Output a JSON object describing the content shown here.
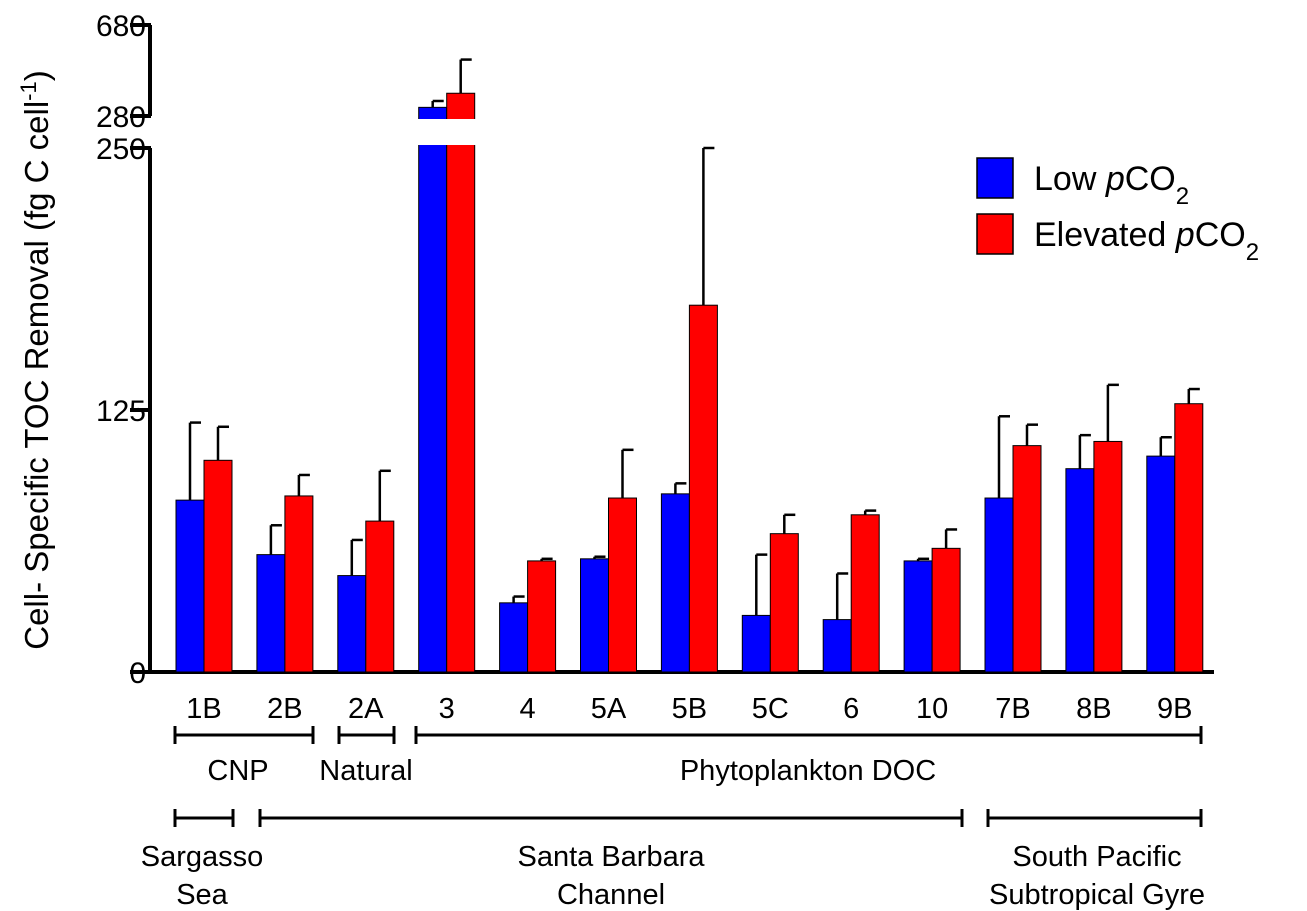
{
  "chart_data": {
    "type": "bar",
    "ylabel": "Cell- Specific TOC Removal (fg C cell",
    "ylabel_sup": "-1",
    "ylabel_tail": ")",
    "y_axis": {
      "lower_segment": {
        "range": [
          0,
          250
        ],
        "ticks": [
          "0",
          "125",
          "250"
        ]
      },
      "upper_segment": {
        "range": [
          280,
          680
        ],
        "ticks": [
          "280",
          "680"
        ]
      },
      "axis_break": "between 250 and 280"
    },
    "categories": [
      "1B",
      "2B",
      "2A",
      "3",
      "4",
      "5A",
      "5B",
      "5C",
      "6",
      "10",
      "7B",
      "8B",
      "9B"
    ],
    "series": [
      {
        "name": "Low pCO2",
        "name_parts": [
          "Low ",
          "p",
          "CO",
          "2"
        ],
        "color": "#0000ff",
        "values": [
          82,
          56,
          46,
          318,
          33,
          54,
          85,
          27,
          25,
          53,
          83,
          97,
          103
        ],
        "errors": [
          37,
          14,
          17,
          28,
          3,
          1,
          5,
          29,
          22,
          1,
          39,
          16,
          9
        ]
      },
      {
        "name": "Elevated pCO2",
        "name_parts": [
          "Elevated ",
          "p",
          "CO",
          "2"
        ],
        "color": "#ff0000",
        "values": [
          101,
          84,
          72,
          380,
          53,
          83,
          175,
          66,
          75,
          59,
          108,
          110,
          128
        ],
        "errors": [
          16,
          10,
          24,
          148,
          1,
          23,
          75,
          9,
          2,
          9,
          10,
          27,
          7
        ]
      }
    ],
    "groupings": {
      "dom_source": [
        {
          "label": "CNP",
          "from": "1B",
          "to": "2B"
        },
        {
          "label": "Natural",
          "from": "2A",
          "to": "2A"
        },
        {
          "label": "Phytoplankton DOC",
          "from": "3",
          "to": "9B"
        }
      ],
      "region": [
        {
          "label": [
            "Sargasso",
            "Sea"
          ],
          "from": "1B",
          "to": "1B"
        },
        {
          "label": [
            "Santa Barbara",
            "Channel"
          ],
          "from": "2B",
          "to": "10"
        },
        {
          "label": [
            "South Pacific",
            "Subtropical Gyre"
          ],
          "from": "7B",
          "to": "9B"
        }
      ]
    },
    "legend_position": "top-right",
    "grid": false
  }
}
